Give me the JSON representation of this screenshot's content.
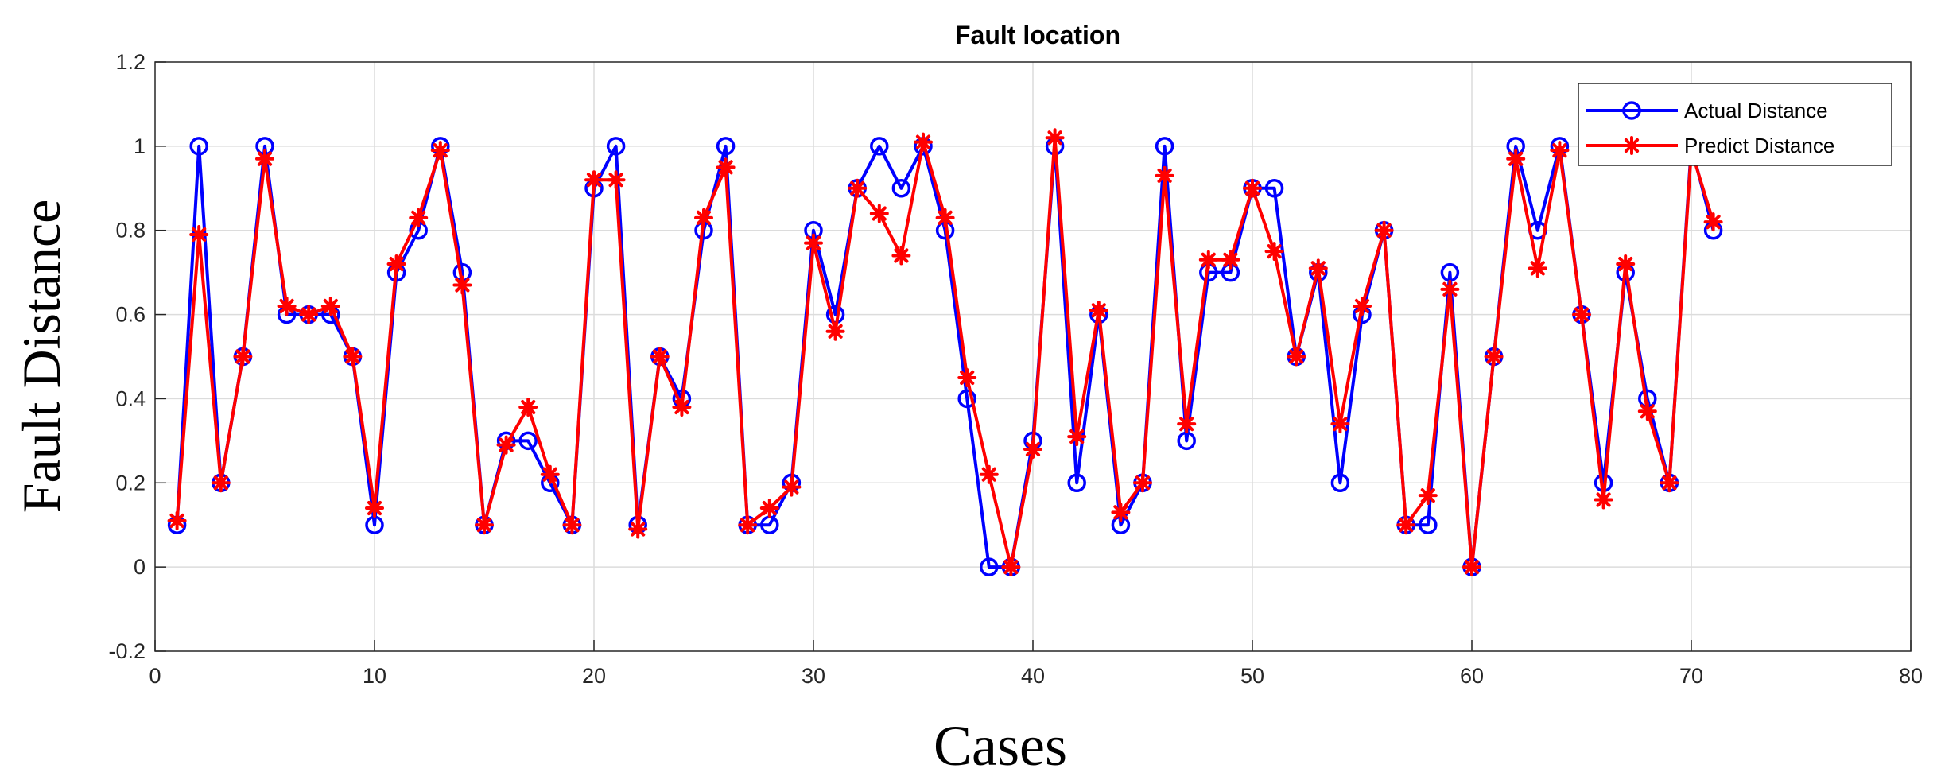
{
  "chart_data": {
    "type": "line",
    "title": "Fault location",
    "xlabel": "Cases",
    "ylabel": "Fault Distance",
    "xlim": [
      0,
      80
    ],
    "ylim": [
      -0.2,
      1.2
    ],
    "xticks": [
      0,
      10,
      20,
      30,
      40,
      50,
      60,
      70,
      80
    ],
    "yticks": [
      -0.2,
      0,
      0.2,
      0.4,
      0.6,
      0.8,
      1,
      1.2
    ],
    "xtick_labels": [
      "0",
      "10",
      "20",
      "30",
      "40",
      "50",
      "60",
      "70",
      "80"
    ],
    "ytick_labels": [
      "-0.2",
      "0",
      "0.2",
      "0.4",
      "0.6",
      "0.8",
      "1",
      "1.2"
    ],
    "grid": true,
    "legend_position": "top-right",
    "x": [
      1,
      2,
      3,
      4,
      5,
      6,
      7,
      8,
      9,
      10,
      11,
      12,
      13,
      14,
      15,
      16,
      17,
      18,
      19,
      20,
      21,
      22,
      23,
      24,
      25,
      26,
      27,
      28,
      29,
      30,
      31,
      32,
      33,
      34,
      35,
      36,
      37,
      38,
      39,
      40,
      41,
      42,
      43,
      44,
      45,
      46,
      47,
      48,
      49,
      50,
      51,
      52,
      53,
      54,
      55,
      56,
      57,
      58,
      59,
      60,
      61,
      62,
      63,
      64,
      65,
      66,
      67,
      68,
      69,
      70,
      71
    ],
    "series": [
      {
        "name": "Actual Distance",
        "color": "#0000ff",
        "marker": "circle",
        "values": [
          0.1,
          1.0,
          0.2,
          0.5,
          1.0,
          0.6,
          0.6,
          0.6,
          0.5,
          0.1,
          0.7,
          0.8,
          1.0,
          0.7,
          0.1,
          0.3,
          0.3,
          0.2,
          0.1,
          0.9,
          1.0,
          0.1,
          0.5,
          0.4,
          0.8,
          1.0,
          0.1,
          0.1,
          0.2,
          0.8,
          0.6,
          0.9,
          1.0,
          0.9,
          1.0,
          0.8,
          0.4,
          0.0,
          0.0,
          0.3,
          1.0,
          0.2,
          0.6,
          0.1,
          0.2,
          1.0,
          0.3,
          0.7,
          0.7,
          0.9,
          0.9,
          0.5,
          0.7,
          0.2,
          0.6,
          0.8,
          0.1,
          0.1,
          0.7,
          0.0,
          0.5,
          1.0,
          0.8,
          1.0,
          0.6,
          0.2,
          0.7,
          0.4,
          0.2,
          1.0,
          0.8
        ]
      },
      {
        "name": "Predict Distance",
        "color": "#ff0000",
        "marker": "asterisk",
        "values": [
          0.11,
          0.79,
          0.2,
          0.5,
          0.97,
          0.62,
          0.6,
          0.62,
          0.5,
          0.14,
          0.72,
          0.83,
          0.99,
          0.67,
          0.1,
          0.29,
          0.38,
          0.22,
          0.1,
          0.92,
          0.92,
          0.09,
          0.5,
          0.38,
          0.83,
          0.95,
          0.1,
          0.14,
          0.19,
          0.77,
          0.56,
          0.9,
          0.84,
          0.74,
          1.01,
          0.83,
          0.45,
          0.22,
          0.0,
          0.28,
          1.02,
          0.31,
          0.61,
          0.13,
          0.2,
          0.93,
          0.34,
          0.73,
          0.73,
          0.9,
          0.75,
          0.5,
          0.71,
          0.34,
          0.62,
          0.8,
          0.1,
          0.17,
          0.66,
          0.0,
          0.5,
          0.97,
          0.71,
          0.99,
          0.6,
          0.16,
          0.72,
          0.37,
          0.2,
          0.99,
          0.82
        ]
      }
    ]
  }
}
